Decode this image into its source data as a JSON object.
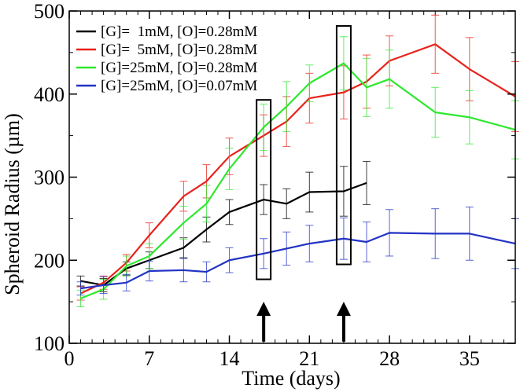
{
  "chart_data": {
    "type": "line",
    "title": "",
    "xlabel": "Time (days)",
    "ylabel": "Spheroid Radius (µm)",
    "xlim": [
      0,
      39
    ],
    "ylim": [
      100,
      500
    ],
    "xticks": [
      0,
      7,
      14,
      21,
      28,
      35
    ],
    "yticks": [
      100,
      200,
      300,
      400,
      500
    ],
    "legend_position": "top-left",
    "series": [
      {
        "name": "[G]=  1mM, [O]=0.28mM",
        "color": "#000000",
        "x": [
          1,
          3,
          5,
          7,
          10,
          12,
          14,
          17,
          19,
          21,
          24,
          26
        ],
        "y": [
          175,
          170,
          190,
          200,
          215,
          237,
          258,
          273,
          268,
          282,
          283,
          293
        ],
        "err": [
          6,
          8,
          8,
          10,
          12,
          15,
          15,
          18,
          18,
          24,
          30,
          26
        ]
      },
      {
        "name": "[G]=  5mM, [O]=0.28mM",
        "color": "#e8221b",
        "x": [
          1,
          3,
          5,
          7,
          10,
          12,
          14,
          17,
          19,
          21,
          24,
          26,
          28,
          32,
          35,
          39
        ],
        "y": [
          160,
          173,
          197,
          230,
          277,
          295,
          325,
          350,
          367,
          395,
          402,
          415,
          440,
          460,
          430,
          397
        ],
        "err": [
          8,
          8,
          10,
          15,
          18,
          20,
          22,
          25,
          30,
          30,
          32,
          32,
          30,
          35,
          38,
          42
        ]
      },
      {
        "name": "[G]=25mM, [O]=0.28mM",
        "color": "#2ee82e",
        "x": [
          1,
          3,
          5,
          7,
          10,
          12,
          14,
          17,
          19,
          21,
          24,
          26,
          28,
          32,
          35,
          39
        ],
        "y": [
          154,
          165,
          193,
          205,
          245,
          268,
          310,
          360,
          385,
          413,
          437,
          408,
          418,
          378,
          372,
          357
        ],
        "err": [
          10,
          12,
          12,
          15,
          20,
          22,
          25,
          28,
          30,
          22,
          32,
          35,
          35,
          30,
          32,
          35
        ]
      },
      {
        "name": "[G]=25mM, [O]=0.07mM",
        "color": "#2233c4",
        "x": [
          1,
          3,
          5,
          7,
          10,
          12,
          14,
          17,
          19,
          21,
          24,
          26,
          28,
          32,
          35,
          39
        ],
        "y": [
          166,
          170,
          173,
          187,
          188,
          186,
          200,
          208,
          214,
          220,
          226,
          222,
          233,
          232,
          232,
          220
        ],
        "err": [
          8,
          10,
          10,
          12,
          14,
          12,
          15,
          18,
          20,
          22,
          25,
          24,
          28,
          30,
          32,
          30
        ]
      }
    ],
    "annotations": [
      {
        "type": "box",
        "x": 17,
        "y_range": [
          177,
          393
        ]
      },
      {
        "type": "box",
        "x": 24,
        "y_range": [
          195,
          482
        ]
      },
      {
        "type": "arrow",
        "x": 17,
        "y_from": 102,
        "y_to": 150
      },
      {
        "type": "arrow",
        "x": 24,
        "y_from": 102,
        "y_to": 150
      }
    ]
  }
}
